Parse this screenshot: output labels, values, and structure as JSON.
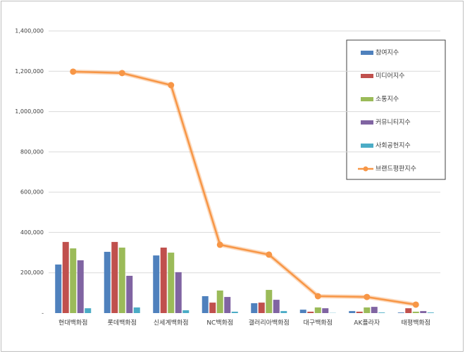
{
  "chart_data": {
    "type": "bar-line",
    "categories": [
      "현대백화점",
      "롯데백화점",
      "신세계백화점",
      "NC백화점",
      "갤러리아백화점",
      "대구백화점",
      "AK플라자",
      "태평백화점"
    ],
    "series": [
      {
        "name": "참여지수",
        "type": "bar",
        "color": "#4f81bd",
        "values": [
          241000,
          304000,
          286000,
          84000,
          49000,
          17000,
          10000,
          3000
        ]
      },
      {
        "name": "미디어지수",
        "type": "bar",
        "color": "#c0504d",
        "values": [
          353000,
          353000,
          325000,
          52000,
          52000,
          7000,
          7000,
          24000
        ]
      },
      {
        "name": "소통지수",
        "type": "bar",
        "color": "#9bbb59",
        "values": [
          321000,
          325000,
          300000,
          112000,
          115000,
          28000,
          28000,
          7000
        ]
      },
      {
        "name": "커뮤니티지수",
        "type": "bar",
        "color": "#8064a2",
        "values": [
          262000,
          185000,
          203000,
          80000,
          66000,
          24000,
          31000,
          10000
        ]
      },
      {
        "name": "사회공헌지수",
        "type": "bar",
        "color": "#4bacc6",
        "values": [
          24000,
          28000,
          14000,
          7000,
          10000,
          1000,
          3000,
          3000
        ]
      },
      {
        "name": "브랜드평판지수",
        "type": "line",
        "color": "#f79646",
        "values": [
          1198000,
          1191000,
          1131000,
          339000,
          290000,
          84000,
          80000,
          42000
        ]
      }
    ],
    "ylim": [
      0,
      1400000
    ],
    "yticks": [
      {
        "value": 0,
        "label": "-"
      },
      {
        "value": 200000,
        "label": "200,000"
      },
      {
        "value": 400000,
        "label": "400,000"
      },
      {
        "value": 600000,
        "label": "600,000"
      },
      {
        "value": 800000,
        "label": "800,000"
      },
      {
        "value": 1000000,
        "label": "1,000,000"
      },
      {
        "value": 1200000,
        "label": "1,200,000"
      },
      {
        "value": 1400000,
        "label": "1,400,000"
      }
    ],
    "grid": true,
    "legend": "right"
  }
}
